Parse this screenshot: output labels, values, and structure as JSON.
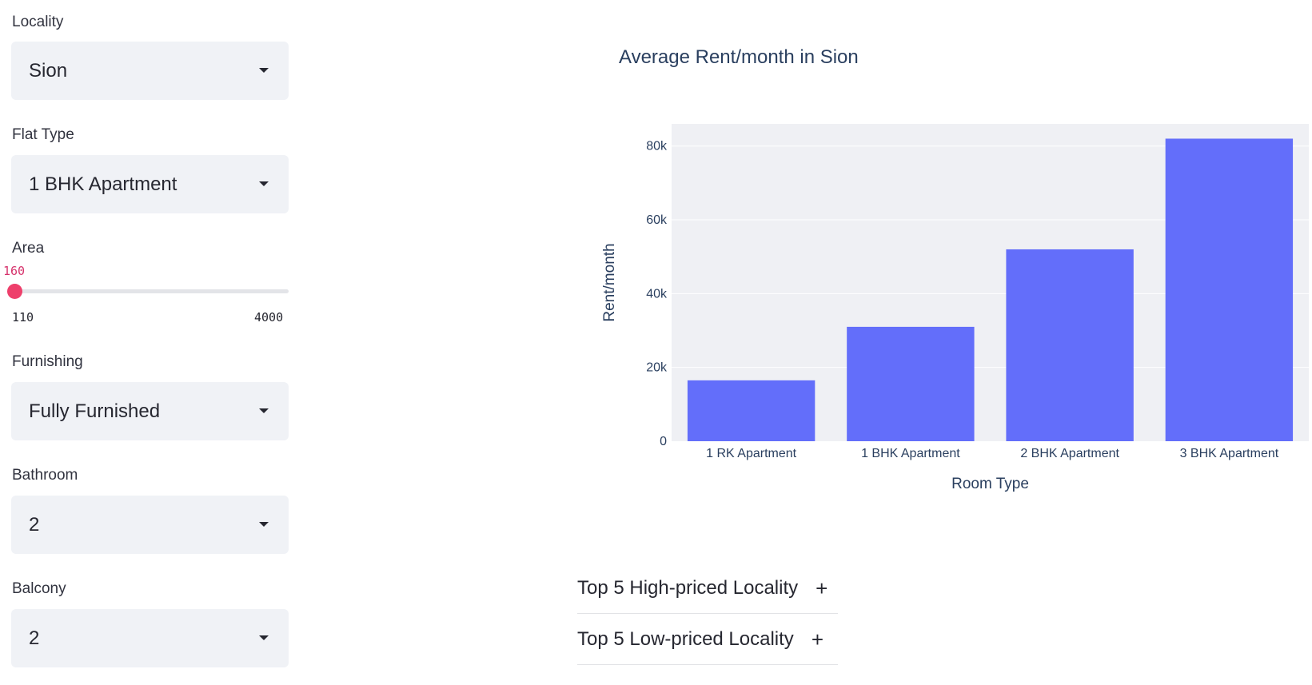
{
  "sidebar": {
    "locality": {
      "label": "Locality",
      "value": "Sion"
    },
    "flat_type": {
      "label": "Flat Type",
      "value": "1 BHK Apartment"
    },
    "area": {
      "label": "Area",
      "value": "160",
      "min": "110",
      "max": "4000",
      "fraction": 0.013
    },
    "furnishing": {
      "label": "Furnishing",
      "value": "Fully Furnished"
    },
    "bathroom": {
      "label": "Bathroom",
      "value": "2"
    },
    "balcony": {
      "label": "Balcony",
      "value": "2"
    }
  },
  "chart_data": {
    "type": "bar",
    "title": "Average Rent/month in Sion",
    "xlabel": "Room Type",
    "ylabel": "Rent/month",
    "categories": [
      "1 RK Apartment",
      "1 BHK Apartment",
      "2 BHK Apartment",
      "3 BHK Apartment"
    ],
    "values": [
      16500,
      31000,
      52000,
      82000
    ],
    "ylim": [
      0,
      86000
    ],
    "yticks": [
      0,
      20000,
      40000,
      60000,
      80000
    ],
    "ytick_labels": [
      "0",
      "20k",
      "40k",
      "60k",
      "80k"
    ],
    "bar_color": "#636efa",
    "plot_bg": "#eff0f4",
    "grid": true
  },
  "expanders": [
    {
      "label": "Top 5 High-priced Locality"
    },
    {
      "label": "Top 5 Low-priced Locality"
    }
  ],
  "icons": {
    "expand": "plus-icon",
    "dropdown": "caret-down-icon"
  }
}
